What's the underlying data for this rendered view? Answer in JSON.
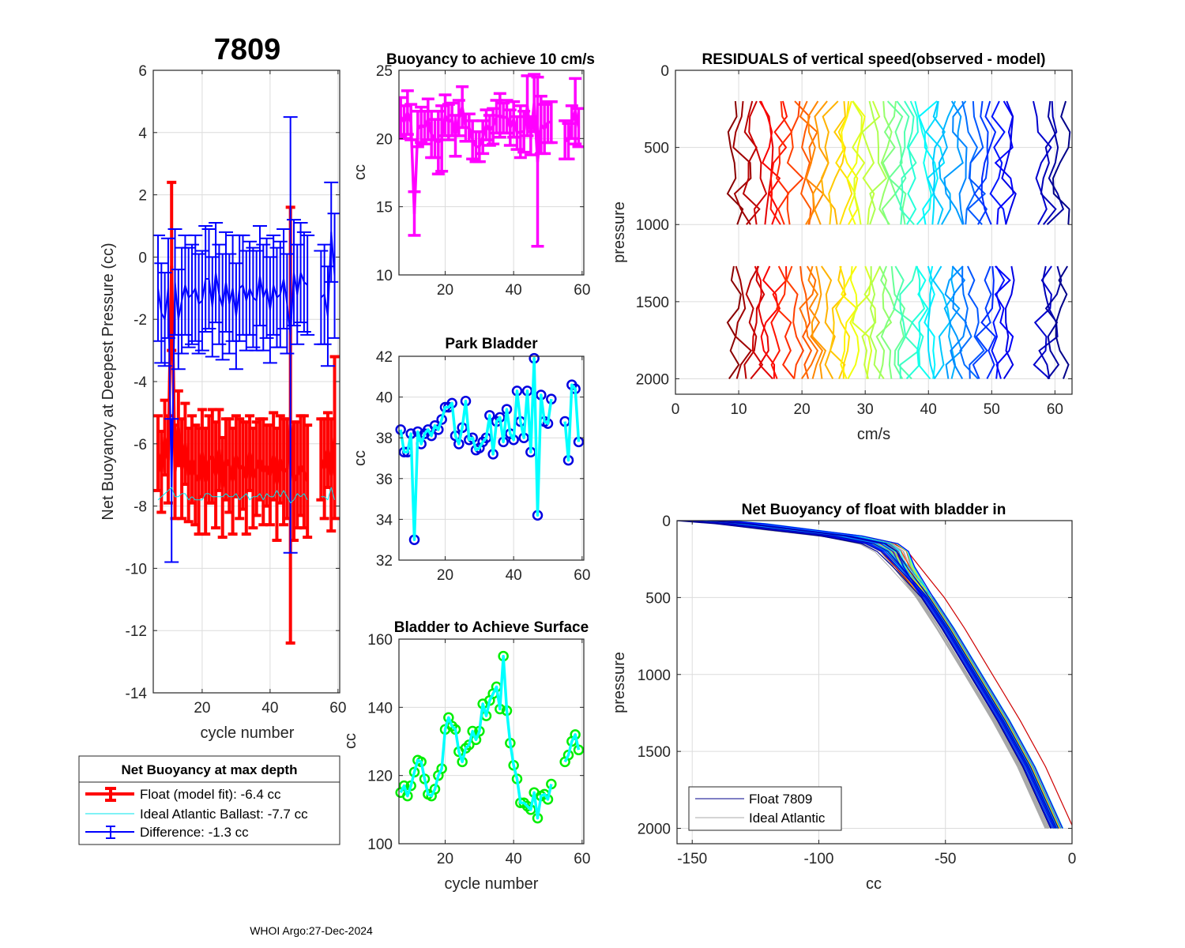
{
  "figure": {
    "main_title": "7809",
    "footer": "WHOI Argo:27-Dec-2024"
  },
  "chart_data": [
    {
      "id": "net-buoyancy",
      "type": "line",
      "title": "7809",
      "xlabel": "cycle number",
      "ylabel": "Net Buoyancy at Deepest Pressure (cc)",
      "xlim": [
        5.6,
        60.5
      ],
      "ylim": [
        -14,
        6
      ],
      "xticks": [
        20,
        40,
        60
      ],
      "yticks": [
        -14,
        -12,
        -10,
        -8,
        -6,
        -4,
        -2,
        0,
        2,
        4,
        6
      ],
      "grid": true,
      "legend": {
        "title": "Net Buoyancy at max depth",
        "placement": "below",
        "entries": [
          {
            "label": "Float (model fit):  -6.4 cc",
            "color": "#ff0000",
            "style": "errorbar-thick"
          },
          {
            "label": "Ideal Atlantic Ballast:  -7.7 cc",
            "color": "#00e5ee",
            "style": "line-thin"
          },
          {
            "label": "Difference:  -1.3 cc",
            "color": "#0000ff",
            "style": "errorbar"
          }
        ]
      },
      "x": [
        7,
        8,
        9,
        10,
        11,
        12,
        13,
        14,
        15,
        16,
        17,
        18,
        19,
        20,
        21,
        22,
        23,
        24,
        25,
        26,
        27,
        28,
        29,
        30,
        31,
        32,
        33,
        34,
        35,
        36,
        37,
        38,
        39,
        40,
        41,
        42,
        43,
        44,
        45,
        46,
        47,
        48,
        49,
        50,
        51,
        55,
        56,
        57,
        58,
        59
      ],
      "series": [
        {
          "name": "Float (model fit)",
          "color": "#ff0000",
          "values": [
            -6.3,
            -6.9,
            -5.8,
            -6.5,
            -0.3,
            -6.9,
            -5.5,
            -6.8,
            -6.0,
            -7.0,
            -6.5,
            -7.0,
            -7.2,
            -6.3,
            -7.2,
            -6.5,
            -6.4,
            -7.0,
            -6.2,
            -7.4,
            -6.5,
            -6.7,
            -7.2,
            -6.4,
            -6.8,
            -6.7,
            -7.1,
            -6.3,
            -7.1,
            -6.8,
            -6.5,
            -6.9,
            -6.7,
            -7.0,
            -6.4,
            -7.3,
            -6.5,
            -6.9,
            -6.8,
            -5.4,
            -7.2,
            -7.0,
            -6.7,
            -6.9,
            -7.2,
            -6.5,
            -6.8,
            -6.2,
            -7.0,
            -5.8
          ],
          "error": [
            1.2,
            1.3,
            1.2,
            1.4,
            2.7,
            1.5,
            1.2,
            1.6,
            1.3,
            1.5,
            1.4,
            1.6,
            1.7,
            1.4,
            1.7,
            1.4,
            1.5,
            1.7,
            1.3,
            1.6,
            1.3,
            1.5,
            1.7,
            1.3,
            1.6,
            1.4,
            1.8,
            1.2,
            1.6,
            1.5,
            1.3,
            1.7,
            1.3,
            1.6,
            1.4,
            1.8,
            1.4,
            1.7,
            1.6,
            7.0,
            1.9,
            1.7,
            1.6,
            1.8,
            1.8,
            1.3,
            1.6,
            1.2,
            1.8,
            2.6
          ]
        },
        {
          "name": "Ideal Atlantic Ballast",
          "color": "#00e5ee",
          "values": [
            -7.8,
            -7.7,
            -7.6,
            -7.5,
            -7.4,
            -7.7,
            -7.7,
            -7.6,
            -7.6,
            -7.8,
            -7.7,
            -7.8,
            -7.8,
            -7.8,
            -7.6,
            -7.6,
            -7.7,
            -7.7,
            -7.7,
            -7.7,
            -7.6,
            -7.7,
            -7.7,
            -7.6,
            -7.8,
            -7.7,
            -7.6,
            -7.8,
            -7.7,
            -7.7,
            -7.6,
            -7.8,
            -7.6,
            -7.7,
            -7.7,
            -7.5,
            -7.7,
            -7.5,
            -7.7,
            -7.9,
            -7.8,
            -7.6,
            -7.7,
            -7.6,
            -7.8,
            -7.7,
            -7.7,
            -7.8,
            -7.4,
            -7.8
          ]
        },
        {
          "name": "Difference",
          "color": "#0000ff",
          "values": [
            -1.0,
            -1.8,
            -2.0,
            -1.0,
            -7.5,
            -0.8,
            -2.0,
            -1.4,
            -0.9,
            -1.3,
            -1.2,
            -1.0,
            -1.5,
            -1.4,
            -0.7,
            -0.7,
            -1.6,
            -0.5,
            -1.2,
            -1.6,
            -0.8,
            -1.5,
            -1.0,
            -1.9,
            -1.0,
            -0.9,
            -1.4,
            -1.0,
            -1.3,
            -1.4,
            -0.6,
            -1.3,
            -1.0,
            -1.7,
            -0.9,
            -1.3,
            -1.2,
            -0.7,
            -1.5,
            -2.5,
            -0.5,
            -1.2,
            -0.5,
            -0.8,
            -0.9,
            -1.3,
            -1.2,
            -1.9,
            0.8,
            -0.6
          ],
          "error": [
            1.7,
            1.6,
            1.5,
            1.6,
            2.3,
            1.7,
            1.6,
            1.7,
            1.6,
            1.6,
            1.6,
            1.7,
            1.6,
            1.6,
            1.7,
            1.6,
            1.6,
            1.6,
            1.6,
            1.7,
            1.6,
            1.6,
            1.7,
            1.7,
            1.7,
            1.6,
            1.6,
            1.5,
            1.6,
            1.6,
            1.6,
            1.7,
            1.6,
            1.7,
            1.6,
            1.6,
            1.7,
            1.6,
            1.6,
            7.0,
            1.7,
            1.6,
            1.6,
            1.6,
            1.6,
            1.5,
            1.6,
            1.6,
            1.6,
            2.0
          ]
        }
      ]
    },
    {
      "id": "buoyancy-10cms",
      "type": "line",
      "title": "Buoyancy to achieve 10 cm/s",
      "xlabel": "",
      "ylabel": "cc",
      "xlim": [
        6.5,
        60.5
      ],
      "ylim": [
        10,
        25
      ],
      "xticks": [
        20,
        40,
        60
      ],
      "yticks": [
        10,
        15,
        20,
        25
      ],
      "grid": true,
      "x": [
        7,
        8,
        9,
        10,
        11,
        12,
        13,
        14,
        15,
        16,
        17,
        18,
        19,
        20,
        21,
        22,
        23,
        24,
        25,
        26,
        27,
        28,
        29,
        30,
        31,
        32,
        33,
        34,
        35,
        36,
        37,
        38,
        39,
        40,
        41,
        42,
        43,
        44,
        45,
        46,
        47,
        48,
        49,
        50,
        51,
        55,
        56,
        57,
        58,
        59
      ],
      "series": [
        {
          "name": "Buoyancy",
          "color": "#ff00ff",
          "values": [
            21.6,
            21.2,
            21.9,
            21.2,
            14.5,
            20.7,
            21.0,
            20.8,
            21.4,
            20.3,
            20.0,
            19.7,
            20.0,
            21.7,
            21.2,
            21.4,
            20.2,
            21.5,
            22.3,
            20.8,
            20.8,
            19.9,
            19.4,
            19.4,
            20.1,
            21.0,
            20.6,
            20.9,
            21.6,
            21.7,
            21.5,
            21.6,
            20.8,
            21.4,
            20.4,
            20.5,
            20.5,
            22.4,
            20.2,
            22.6,
            18.3,
            21.0,
            20.7,
            21.2,
            21.2,
            19.9,
            19.8,
            21.2,
            22.0,
            20.8
          ],
          "error": [
            1.4,
            1.2,
            1.6,
            1.3,
            1.6,
            1.3,
            1.3,
            1.2,
            1.5,
            1.7,
            1.4,
            2.3,
            2.4,
            1.5,
            1.3,
            1.2,
            1.5,
            1.3,
            1.5,
            1.0,
            1.0,
            1.4,
            1.1,
            1.1,
            1.2,
            1.1,
            1.1,
            1.3,
            1.2,
            1.6,
            1.1,
            1.2,
            1.3,
            1.3,
            1.2,
            1.9,
            1.5,
            2.2,
            1.4,
            2.1,
            6.2,
            2.1,
            1.8,
            1.5,
            1.5,
            1.4,
            1.3,
            1.2,
            2.4,
            1.4
          ]
        }
      ]
    },
    {
      "id": "park-bladder",
      "type": "line",
      "title": "Park Bladder",
      "xlabel": "",
      "ylabel": "cc",
      "xlim": [
        6.5,
        60.5
      ],
      "ylim": [
        32,
        42
      ],
      "xticks": [
        20,
        40,
        60
      ],
      "yticks": [
        32,
        34,
        36,
        38,
        40,
        42
      ],
      "grid": true,
      "x": [
        7,
        8,
        9,
        10,
        11,
        12,
        13,
        14,
        15,
        16,
        17,
        18,
        19,
        20,
        21,
        22,
        23,
        24,
        25,
        26,
        27,
        28,
        29,
        30,
        31,
        32,
        33,
        34,
        35,
        36,
        37,
        38,
        39,
        40,
        41,
        42,
        43,
        44,
        45,
        46,
        47,
        48,
        49,
        50,
        51,
        55,
        56,
        57,
        58,
        59
      ],
      "series": [
        {
          "name": "Park Bladder",
          "line_color": "#00ffff",
          "marker_color": "#0000e0",
          "values": [
            38.4,
            37.3,
            37.3,
            38.2,
            33.0,
            38.3,
            37.7,
            38.2,
            38.4,
            38.1,
            38.6,
            38.4,
            38.9,
            39.5,
            39.5,
            39.7,
            38.1,
            37.7,
            38.5,
            39.8,
            37.9,
            38.0,
            37.4,
            37.5,
            37.8,
            38.0,
            39.1,
            37.2,
            38.8,
            39.0,
            37.8,
            39.4,
            38.2,
            37.9,
            40.3,
            38.8,
            38.0,
            40.3,
            37.3,
            41.9,
            34.2,
            40.1,
            38.8,
            38.7,
            39.9,
            38.8,
            36.9,
            40.6,
            40.4,
            37.8
          ]
        }
      ]
    },
    {
      "id": "bladder-surface",
      "type": "line",
      "title": "Bladder to Achieve Surface",
      "xlabel": "cycle number",
      "ylabel": "cc",
      "xlim": [
        6.5,
        60.5
      ],
      "ylim": [
        100,
        160
      ],
      "xticks": [
        20,
        40,
        60
      ],
      "yticks": [
        100,
        120,
        140,
        160
      ],
      "grid": true,
      "x": [
        7,
        8,
        9,
        10,
        11,
        12,
        13,
        14,
        15,
        16,
        17,
        18,
        19,
        20,
        21,
        22,
        23,
        24,
        25,
        26,
        27,
        28,
        29,
        30,
        31,
        32,
        33,
        34,
        35,
        36,
        37,
        38,
        39,
        40,
        41,
        42,
        43,
        44,
        45,
        46,
        47,
        48,
        49,
        50,
        51,
        55,
        56,
        57,
        58,
        59
      ],
      "series": [
        {
          "name": "Bladder to Achieve Surface",
          "line_color": "#00ffff",
          "marker_color": "#00ee00",
          "values": [
            115,
            117,
            114,
            117,
            121,
            124.5,
            124,
            119,
            114.5,
            114,
            116,
            120,
            122,
            133.5,
            137,
            134.5,
            133.5,
            127,
            124,
            128,
            129,
            133,
            130.5,
            133,
            141,
            137.5,
            142,
            144,
            146,
            139.5,
            155,
            139,
            129.5,
            123,
            119,
            112,
            112,
            111,
            110,
            115,
            107.5,
            114,
            114.5,
            113,
            117.5,
            124,
            126,
            130,
            132,
            127.5
          ]
        }
      ]
    },
    {
      "id": "residuals",
      "type": "line",
      "title": "RESIDUALS of vertical speed(observed - model)",
      "xlabel": "cm/s",
      "ylabel": "pressure",
      "xlim": [
        0,
        62.7
      ],
      "ylim": [
        2100,
        0
      ],
      "y_reversed": true,
      "xticks": [
        0,
        10,
        20,
        30,
        40,
        50,
        60
      ],
      "yticks": [
        0,
        500,
        1000,
        1500,
        2000
      ],
      "grid": true,
      "colormap": "jet-reversed",
      "profile_offsets": [
        9.5,
        10.5,
        12,
        13,
        14,
        15,
        16.5,
        17.5,
        19,
        20,
        21,
        22,
        23,
        24.5,
        25.5,
        26.5,
        27.5,
        28.5,
        29.5,
        31,
        32,
        33,
        34,
        35,
        36,
        37,
        38,
        39,
        40,
        41,
        42,
        43,
        44,
        45,
        46.5,
        47.5,
        48.5,
        49.5,
        51,
        52,
        53,
        58,
        59,
        60,
        61
      ],
      "residual_amplitude_cms": 1.5,
      "pressure_upper_segment": [
        200,
        1000
      ],
      "pressure_lower_segment": [
        1270,
        2000
      ]
    },
    {
      "id": "net-buoyancy-bladder-in",
      "type": "line",
      "title": "Net Buoyancy of float with bladder in",
      "xlabel": "cc",
      "ylabel": "pressure",
      "xlim": [
        -156,
        0
      ],
      "ylim": [
        2100,
        0
      ],
      "y_reversed": true,
      "xticks": [
        -150,
        -100,
        -50,
        0
      ],
      "yticks": [
        0,
        500,
        1000,
        1500,
        2000
      ],
      "grid": true,
      "legend": {
        "placement": "bottom-left",
        "entries": [
          {
            "label": "Float 7809",
            "color": "#00008b"
          },
          {
            "label": "Ideal Atlantic",
            "color": "#a9a9a9"
          }
        ]
      },
      "mean_profile": {
        "pressure": [
          0,
          20,
          60,
          100,
          150,
          200,
          300,
          500,
          700,
          1000,
          1300,
          1600,
          2000
        ],
        "cc": [
          -145,
          -130,
          -110,
          -90,
          -75,
          -70,
          -66,
          -57,
          -49,
          -38,
          -27,
          -17,
          -6
        ]
      }
    }
  ]
}
